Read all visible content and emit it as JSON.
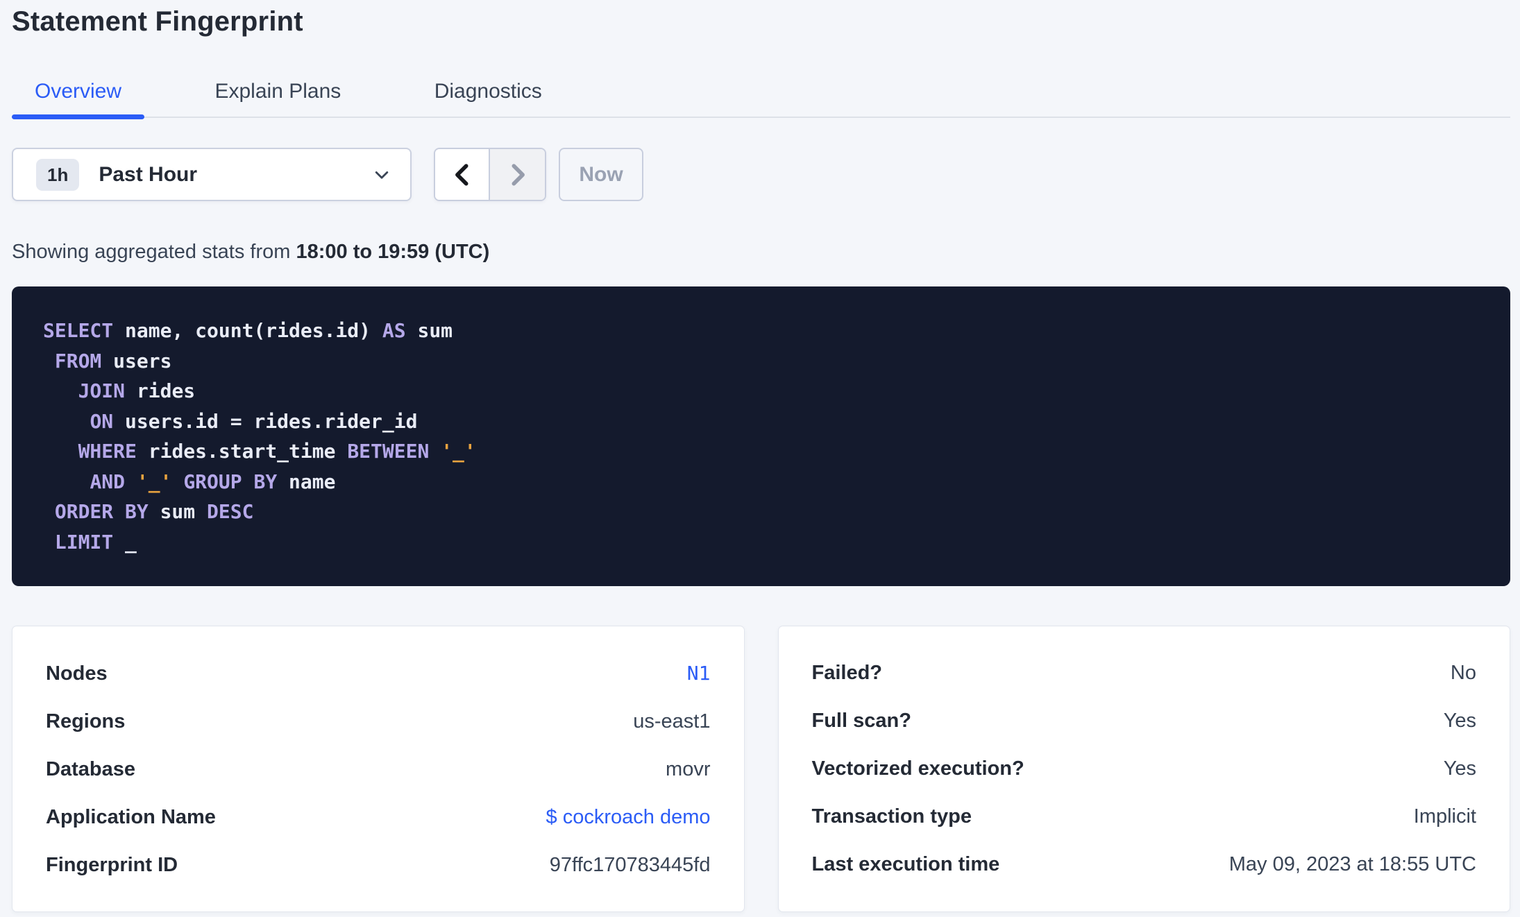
{
  "page_title": "Statement Fingerprint",
  "tabs": [
    {
      "label": "Overview",
      "active": true
    },
    {
      "label": "Explain Plans",
      "active": false
    },
    {
      "label": "Diagnostics",
      "active": false
    }
  ],
  "time_picker": {
    "interval_badge": "1h",
    "selected_label": "Past Hour",
    "now_button": "Now"
  },
  "stats_summary": {
    "prefix": "Showing aggregated stats from ",
    "range_bold": "18:00 to 19:59 (UTC)"
  },
  "sql": {
    "lines": [
      [
        [
          "kw",
          "SELECT"
        ],
        [
          "id",
          " name, count(rides.id) "
        ],
        [
          "kw",
          "AS"
        ],
        [
          "id",
          " sum"
        ]
      ],
      [
        [
          "id",
          " "
        ],
        [
          "kw",
          "FROM"
        ],
        [
          "id",
          " users"
        ]
      ],
      [
        [
          "id",
          "   "
        ],
        [
          "kw",
          "JOIN"
        ],
        [
          "id",
          " rides"
        ]
      ],
      [
        [
          "id",
          "    "
        ],
        [
          "kw",
          "ON"
        ],
        [
          "id",
          " users.id = rides.rider_id"
        ]
      ],
      [
        [
          "id",
          "   "
        ],
        [
          "kw",
          "WHERE"
        ],
        [
          "id",
          " rides.start_time "
        ],
        [
          "kw",
          "BETWEEN"
        ],
        [
          "id",
          " "
        ],
        [
          "lit",
          "'_'"
        ]
      ],
      [
        [
          "id",
          "    "
        ],
        [
          "kw",
          "AND"
        ],
        [
          "id",
          " "
        ],
        [
          "lit",
          "'_'"
        ],
        [
          "id",
          " "
        ],
        [
          "kw",
          "GROUP BY"
        ],
        [
          "id",
          " name"
        ]
      ],
      [
        [
          "id",
          " "
        ],
        [
          "kw",
          "ORDER BY"
        ],
        [
          "id",
          " sum "
        ],
        [
          "kw",
          "DESC"
        ]
      ],
      [
        [
          "id",
          " "
        ],
        [
          "kw",
          "LIMIT"
        ],
        [
          "id",
          " _"
        ]
      ]
    ]
  },
  "details_cards": {
    "left": {
      "rows": [
        {
          "label": "Nodes",
          "value": "N1",
          "style": "mono-link"
        },
        {
          "label": "Regions",
          "value": "us-east1",
          "style": "text"
        },
        {
          "label": "Database",
          "value": "movr",
          "style": "text"
        },
        {
          "label": "Application Name",
          "value": "$ cockroach demo",
          "style": "link"
        },
        {
          "label": "Fingerprint ID",
          "value": "97ffc170783445fd",
          "style": "text"
        }
      ]
    },
    "right": {
      "rows": [
        {
          "label": "Failed?",
          "value": "No",
          "style": "text"
        },
        {
          "label": "Full scan?",
          "value": "Yes",
          "style": "text"
        },
        {
          "label": "Vectorized execution?",
          "value": "Yes",
          "style": "text"
        },
        {
          "label": "Transaction type",
          "value": "Implicit",
          "style": "text"
        },
        {
          "label": "Last execution time",
          "value": "May 09, 2023 at 18:55 UTC",
          "style": "text"
        }
      ]
    }
  },
  "icons": {
    "dropdown": "chevron-down-icon",
    "previous": "chevron-left-icon",
    "next": "chevron-right-icon"
  },
  "colors": {
    "page_bg": "#F4F6FA",
    "accent_blue": "#2B5CF6",
    "heading_text": "#242A35",
    "body_text": "#394455",
    "muted_text": "#9AA2B3",
    "sql_bg": "#141A2D",
    "sql_keyword": "#B5A8E9",
    "sql_identifier": "#E9ECF6",
    "sql_literal": "#E8A33F"
  }
}
